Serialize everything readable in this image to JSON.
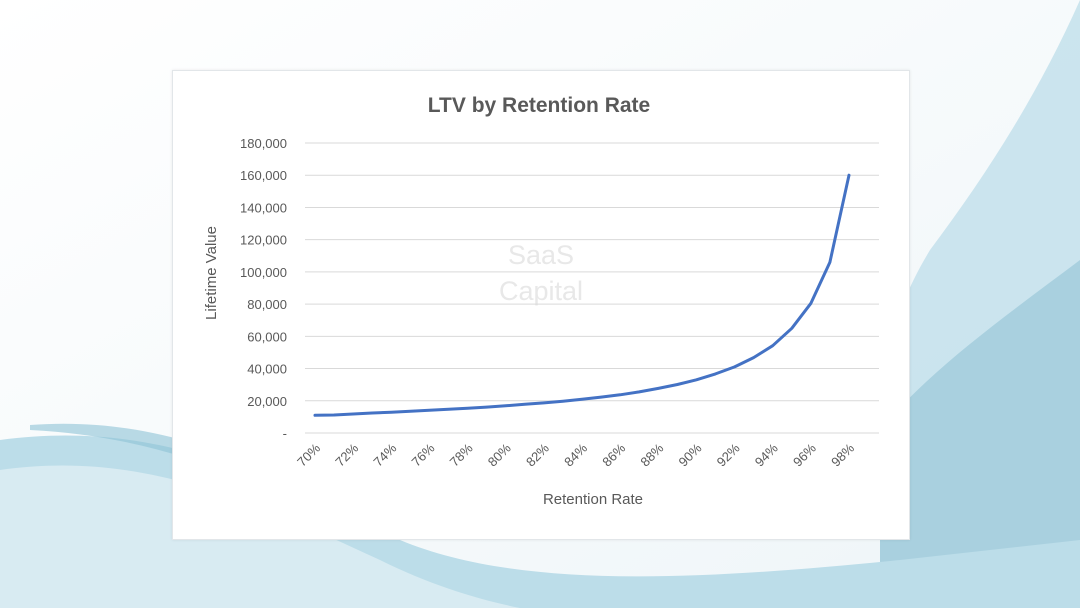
{
  "chart_data": {
    "type": "line",
    "title": "LTV by Retention Rate",
    "xlabel": "Retention Rate",
    "ylabel": "Lifetime Value",
    "categories": [
      "70%",
      "71%",
      "72%",
      "73%",
      "74%",
      "75%",
      "76%",
      "77%",
      "78%",
      "79%",
      "80%",
      "81%",
      "82%",
      "83%",
      "84%",
      "85%",
      "86%",
      "87%",
      "88%",
      "89%",
      "90%",
      "91%",
      "92%",
      "93%",
      "94%",
      "95%",
      "96%",
      "97%",
      "98%"
    ],
    "x_tick_labels": [
      "70%",
      "72%",
      "74%",
      "76%",
      "78%",
      "80%",
      "82%",
      "84%",
      "86%",
      "88%",
      "90%",
      "92%",
      "94%",
      "96%",
      "98%"
    ],
    "y_tick_labels": [
      "-",
      "20,000",
      "40,000",
      "60,000",
      "80,000",
      "100,000",
      "120,000",
      "140,000",
      "160,000",
      "180,000"
    ],
    "ylim": [
      0,
      180000
    ],
    "y_tick_step": 20000,
    "grid": true,
    "legend": "none",
    "series": [
      {
        "name": "LTV",
        "color": "#4472c4",
        "values": [
          11000,
          11200,
          11800,
          12400,
          12900,
          13500,
          14100,
          14700,
          15400,
          16100,
          16900,
          17800,
          18700,
          19700,
          20900,
          22300,
          23700,
          25500,
          27700,
          30100,
          33000,
          36700,
          41000,
          46800,
          54200,
          65000,
          80500,
          106000,
          160000
        ]
      }
    ]
  },
  "watermark": {
    "line1": "SaaS",
    "line2": "Capital"
  },
  "colors": {
    "line": "#4472c4",
    "gridline": "#d9d9d9",
    "text": "#595959",
    "background_wave": "#a9d0df"
  }
}
